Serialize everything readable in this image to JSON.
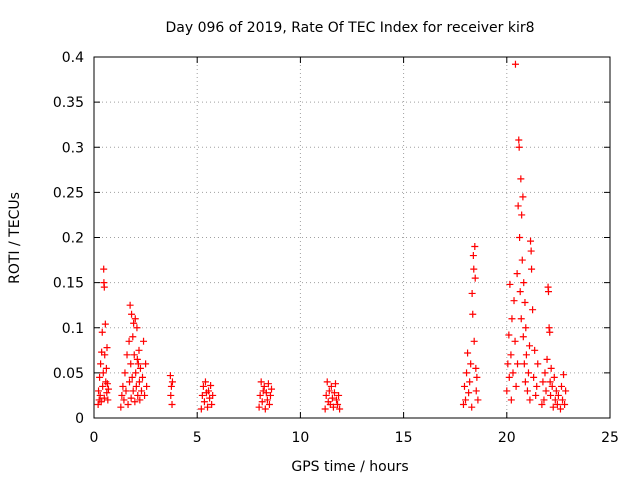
{
  "chart_data": {
    "type": "scatter",
    "title": "Day 096 of 2019, Rate Of TEC Index for receiver kir8",
    "xlabel": "GPS time / hours",
    "ylabel": "ROTI / TECUs",
    "xlim": [
      0,
      25
    ],
    "ylim": [
      0,
      0.4
    ],
    "xticks": [
      0,
      5,
      10,
      15,
      20,
      25
    ],
    "xtick_labels": [
      "0",
      "5",
      "10",
      "15",
      "20",
      "25"
    ],
    "yticks": [
      0,
      0.05,
      0.1,
      0.15,
      0.2,
      0.25,
      0.3,
      0.35,
      0.4
    ],
    "ytick_labels": [
      "0",
      "0.05",
      "0.1",
      "0.15",
      "0.2",
      "0.25",
      "0.3",
      "0.35",
      "0.4"
    ],
    "grid": true,
    "marker": "+",
    "series_color": "#ff0000",
    "series": [
      {
        "name": "ROTI",
        "points": [
          [
            0.2,
            0.015
          ],
          [
            0.22,
            0.03
          ],
          [
            0.25,
            0.02
          ],
          [
            0.27,
            0.045
          ],
          [
            0.3,
            0.025
          ],
          [
            0.32,
            0.06
          ],
          [
            0.35,
            0.018
          ],
          [
            0.37,
            0.073
          ],
          [
            0.4,
            0.095
          ],
          [
            0.42,
            0.035
          ],
          [
            0.45,
            0.05
          ],
          [
            0.47,
            0.165
          ],
          [
            0.48,
            0.15
          ],
          [
            0.5,
            0.145
          ],
          [
            0.5,
            0.022
          ],
          [
            0.52,
            0.07
          ],
          [
            0.55,
            0.104
          ],
          [
            0.57,
            0.04
          ],
          [
            0.6,
            0.055
          ],
          [
            0.62,
            0.028
          ],
          [
            0.63,
            0.078
          ],
          [
            0.65,
            0.038
          ],
          [
            0.67,
            0.02
          ],
          [
            0.7,
            0.032
          ],
          [
            1.3,
            0.012
          ],
          [
            1.35,
            0.025
          ],
          [
            1.4,
            0.035
          ],
          [
            1.45,
            0.02
          ],
          [
            1.5,
            0.05
          ],
          [
            1.55,
            0.03
          ],
          [
            1.6,
            0.07
          ],
          [
            1.65,
            0.015
          ],
          [
            1.7,
            0.085
          ],
          [
            1.72,
            0.04
          ],
          [
            1.75,
            0.125
          ],
          [
            1.78,
            0.06
          ],
          [
            1.8,
            0.022
          ],
          [
            1.82,
            0.115
          ],
          [
            1.85,
            0.045
          ],
          [
            1.88,
            0.09
          ],
          [
            1.9,
            0.03
          ],
          [
            1.92,
            0.105
          ],
          [
            1.95,
            0.07
          ],
          [
            1.98,
            0.018
          ],
          [
            2.0,
            0.11
          ],
          [
            2.02,
            0.05
          ],
          [
            2.05,
            0.035
          ],
          [
            2.08,
            0.1
          ],
          [
            2.1,
            0.065
          ],
          [
            2.12,
            0.025
          ],
          [
            2.15,
            0.06
          ],
          [
            2.18,
            0.075
          ],
          [
            2.2,
            0.04
          ],
          [
            2.22,
            0.02
          ],
          [
            2.25,
            0.055
          ],
          [
            2.3,
            0.03
          ],
          [
            2.35,
            0.045
          ],
          [
            2.4,
            0.085
          ],
          [
            2.45,
            0.025
          ],
          [
            2.5,
            0.06
          ],
          [
            2.55,
            0.035
          ],
          [
            3.7,
            0.047
          ],
          [
            3.72,
            0.025
          ],
          [
            3.75,
            0.035
          ],
          [
            3.78,
            0.015
          ],
          [
            3.8,
            0.04
          ],
          [
            5.2,
            0.01
          ],
          [
            5.25,
            0.025
          ],
          [
            5.3,
            0.035
          ],
          [
            5.35,
            0.018
          ],
          [
            5.4,
            0.04
          ],
          [
            5.45,
            0.028
          ],
          [
            5.5,
            0.012
          ],
          [
            5.55,
            0.03
          ],
          [
            5.6,
            0.022
          ],
          [
            5.65,
            0.036
          ],
          [
            5.7,
            0.015
          ],
          [
            5.75,
            0.025
          ],
          [
            8.0,
            0.012
          ],
          [
            8.05,
            0.025
          ],
          [
            8.1,
            0.04
          ],
          [
            8.15,
            0.018
          ],
          [
            8.2,
            0.03
          ],
          [
            8.25,
            0.035
          ],
          [
            8.3,
            0.01
          ],
          [
            8.35,
            0.028
          ],
          [
            8.4,
            0.02
          ],
          [
            8.45,
            0.038
          ],
          [
            8.5,
            0.015
          ],
          [
            8.55,
            0.025
          ],
          [
            8.6,
            0.032
          ],
          [
            11.2,
            0.01
          ],
          [
            11.25,
            0.025
          ],
          [
            11.3,
            0.04
          ],
          [
            11.35,
            0.018
          ],
          [
            11.4,
            0.03
          ],
          [
            11.45,
            0.015
          ],
          [
            11.5,
            0.035
          ],
          [
            11.55,
            0.022
          ],
          [
            11.6,
            0.012
          ],
          [
            11.65,
            0.028
          ],
          [
            11.7,
            0.038
          ],
          [
            11.75,
            0.02
          ],
          [
            11.8,
            0.015
          ],
          [
            11.85,
            0.025
          ],
          [
            11.9,
            0.01
          ],
          [
            17.9,
            0.015
          ],
          [
            17.95,
            0.035
          ],
          [
            18.0,
            0.02
          ],
          [
            18.05,
            0.05
          ],
          [
            18.1,
            0.072
          ],
          [
            18.15,
            0.028
          ],
          [
            18.2,
            0.04
          ],
          [
            18.25,
            0.06
          ],
          [
            18.3,
            0.012
          ],
          [
            18.32,
            0.138
          ],
          [
            18.35,
            0.115
          ],
          [
            18.38,
            0.18
          ],
          [
            18.4,
            0.165
          ],
          [
            18.42,
            0.085
          ],
          [
            18.45,
            0.19
          ],
          [
            18.47,
            0.155
          ],
          [
            18.5,
            0.055
          ],
          [
            18.52,
            0.03
          ],
          [
            18.55,
            0.045
          ],
          [
            18.6,
            0.02
          ],
          [
            20.0,
            0.03
          ],
          [
            20.05,
            0.06
          ],
          [
            20.1,
            0.092
          ],
          [
            20.12,
            0.045
          ],
          [
            20.15,
            0.148
          ],
          [
            20.2,
            0.07
          ],
          [
            20.22,
            0.02
          ],
          [
            20.25,
            0.11
          ],
          [
            20.3,
            0.05
          ],
          [
            20.35,
            0.13
          ],
          [
            20.4,
            0.085
          ],
          [
            20.42,
            0.392
          ],
          [
            20.45,
            0.035
          ],
          [
            20.5,
            0.16
          ],
          [
            20.52,
            0.06
          ],
          [
            20.55,
            0.235
          ],
          [
            20.58,
            0.308
          ],
          [
            20.6,
            0.3
          ],
          [
            20.62,
            0.2
          ],
          [
            20.65,
            0.14
          ],
          [
            20.68,
            0.265
          ],
          [
            20.7,
            0.11
          ],
          [
            20.72,
            0.225
          ],
          [
            20.75,
            0.175
          ],
          [
            20.78,
            0.245
          ],
          [
            20.8,
            0.09
          ],
          [
            20.82,
            0.15
          ],
          [
            20.85,
            0.06
          ],
          [
            20.88,
            0.128
          ],
          [
            20.9,
            0.04
          ],
          [
            20.92,
            0.1
          ],
          [
            20.95,
            0.07
          ],
          [
            21.0,
            0.03
          ],
          [
            21.05,
            0.05
          ],
          [
            21.1,
            0.08
          ],
          [
            21.12,
            0.02
          ],
          [
            21.15,
            0.196
          ],
          [
            21.18,
            0.185
          ],
          [
            21.2,
            0.165
          ],
          [
            21.25,
            0.12
          ],
          [
            21.3,
            0.045
          ],
          [
            21.35,
            0.075
          ],
          [
            21.4,
            0.025
          ],
          [
            21.45,
            0.035
          ],
          [
            21.5,
            0.06
          ],
          [
            21.7,
            0.015
          ],
          [
            21.75,
            0.04
          ],
          [
            21.8,
            0.02
          ],
          [
            21.85,
            0.05
          ],
          [
            21.9,
            0.03
          ],
          [
            21.95,
            0.065
          ],
          [
            22.0,
            0.145
          ],
          [
            22.02,
            0.14
          ],
          [
            22.05,
            0.1
          ],
          [
            22.08,
            0.095
          ],
          [
            22.1,
            0.04
          ],
          [
            22.12,
            0.025
          ],
          [
            22.15,
            0.055
          ],
          [
            22.2,
            0.035
          ],
          [
            22.25,
            0.012
          ],
          [
            22.3,
            0.045
          ],
          [
            22.35,
            0.02
          ],
          [
            22.4,
            0.03
          ],
          [
            22.45,
            0.015
          ],
          [
            22.5,
            0.025
          ],
          [
            22.6,
            0.01
          ],
          [
            22.65,
            0.035
          ],
          [
            22.7,
            0.02
          ],
          [
            22.75,
            0.048
          ],
          [
            22.8,
            0.015
          ],
          [
            22.85,
            0.03
          ]
        ]
      }
    ]
  }
}
